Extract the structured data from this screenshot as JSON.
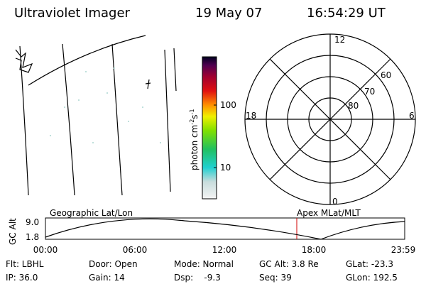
{
  "header": {
    "title": "Ultraviolet Imager",
    "date": "19 May 07",
    "time": "16:54:29 UT"
  },
  "colorbar": {
    "label": "photon cm",
    "exp1": "-2",
    "unit2": "s",
    "exp2": "-1",
    "ticks": [
      "100",
      "10"
    ]
  },
  "polar": {
    "labels": [
      "12",
      "60",
      "70",
      "80",
      "18",
      "6",
      "0"
    ]
  },
  "orbit": {
    "left_label": "Geographic Lat/Lon",
    "right_label": "Apex MLat/MLT",
    "y_title": "GC Alt",
    "y_labels": [
      "9.0",
      "1.8"
    ],
    "x_labels": [
      "00:00",
      "06:00",
      "12:00",
      "18:00",
      "23:59"
    ]
  },
  "status": {
    "rows": [
      [
        "Flt: LBHL",
        "Door: Open",
        "Mode: Normal",
        "GC Alt: 3.8 Re",
        "GLat: -23.3"
      ],
      [
        "IP: 36.0",
        "Gain: 14",
        "Dsp:    -9.3",
        "Seq: 39",
        "GLon: 192.5"
      ]
    ]
  }
}
